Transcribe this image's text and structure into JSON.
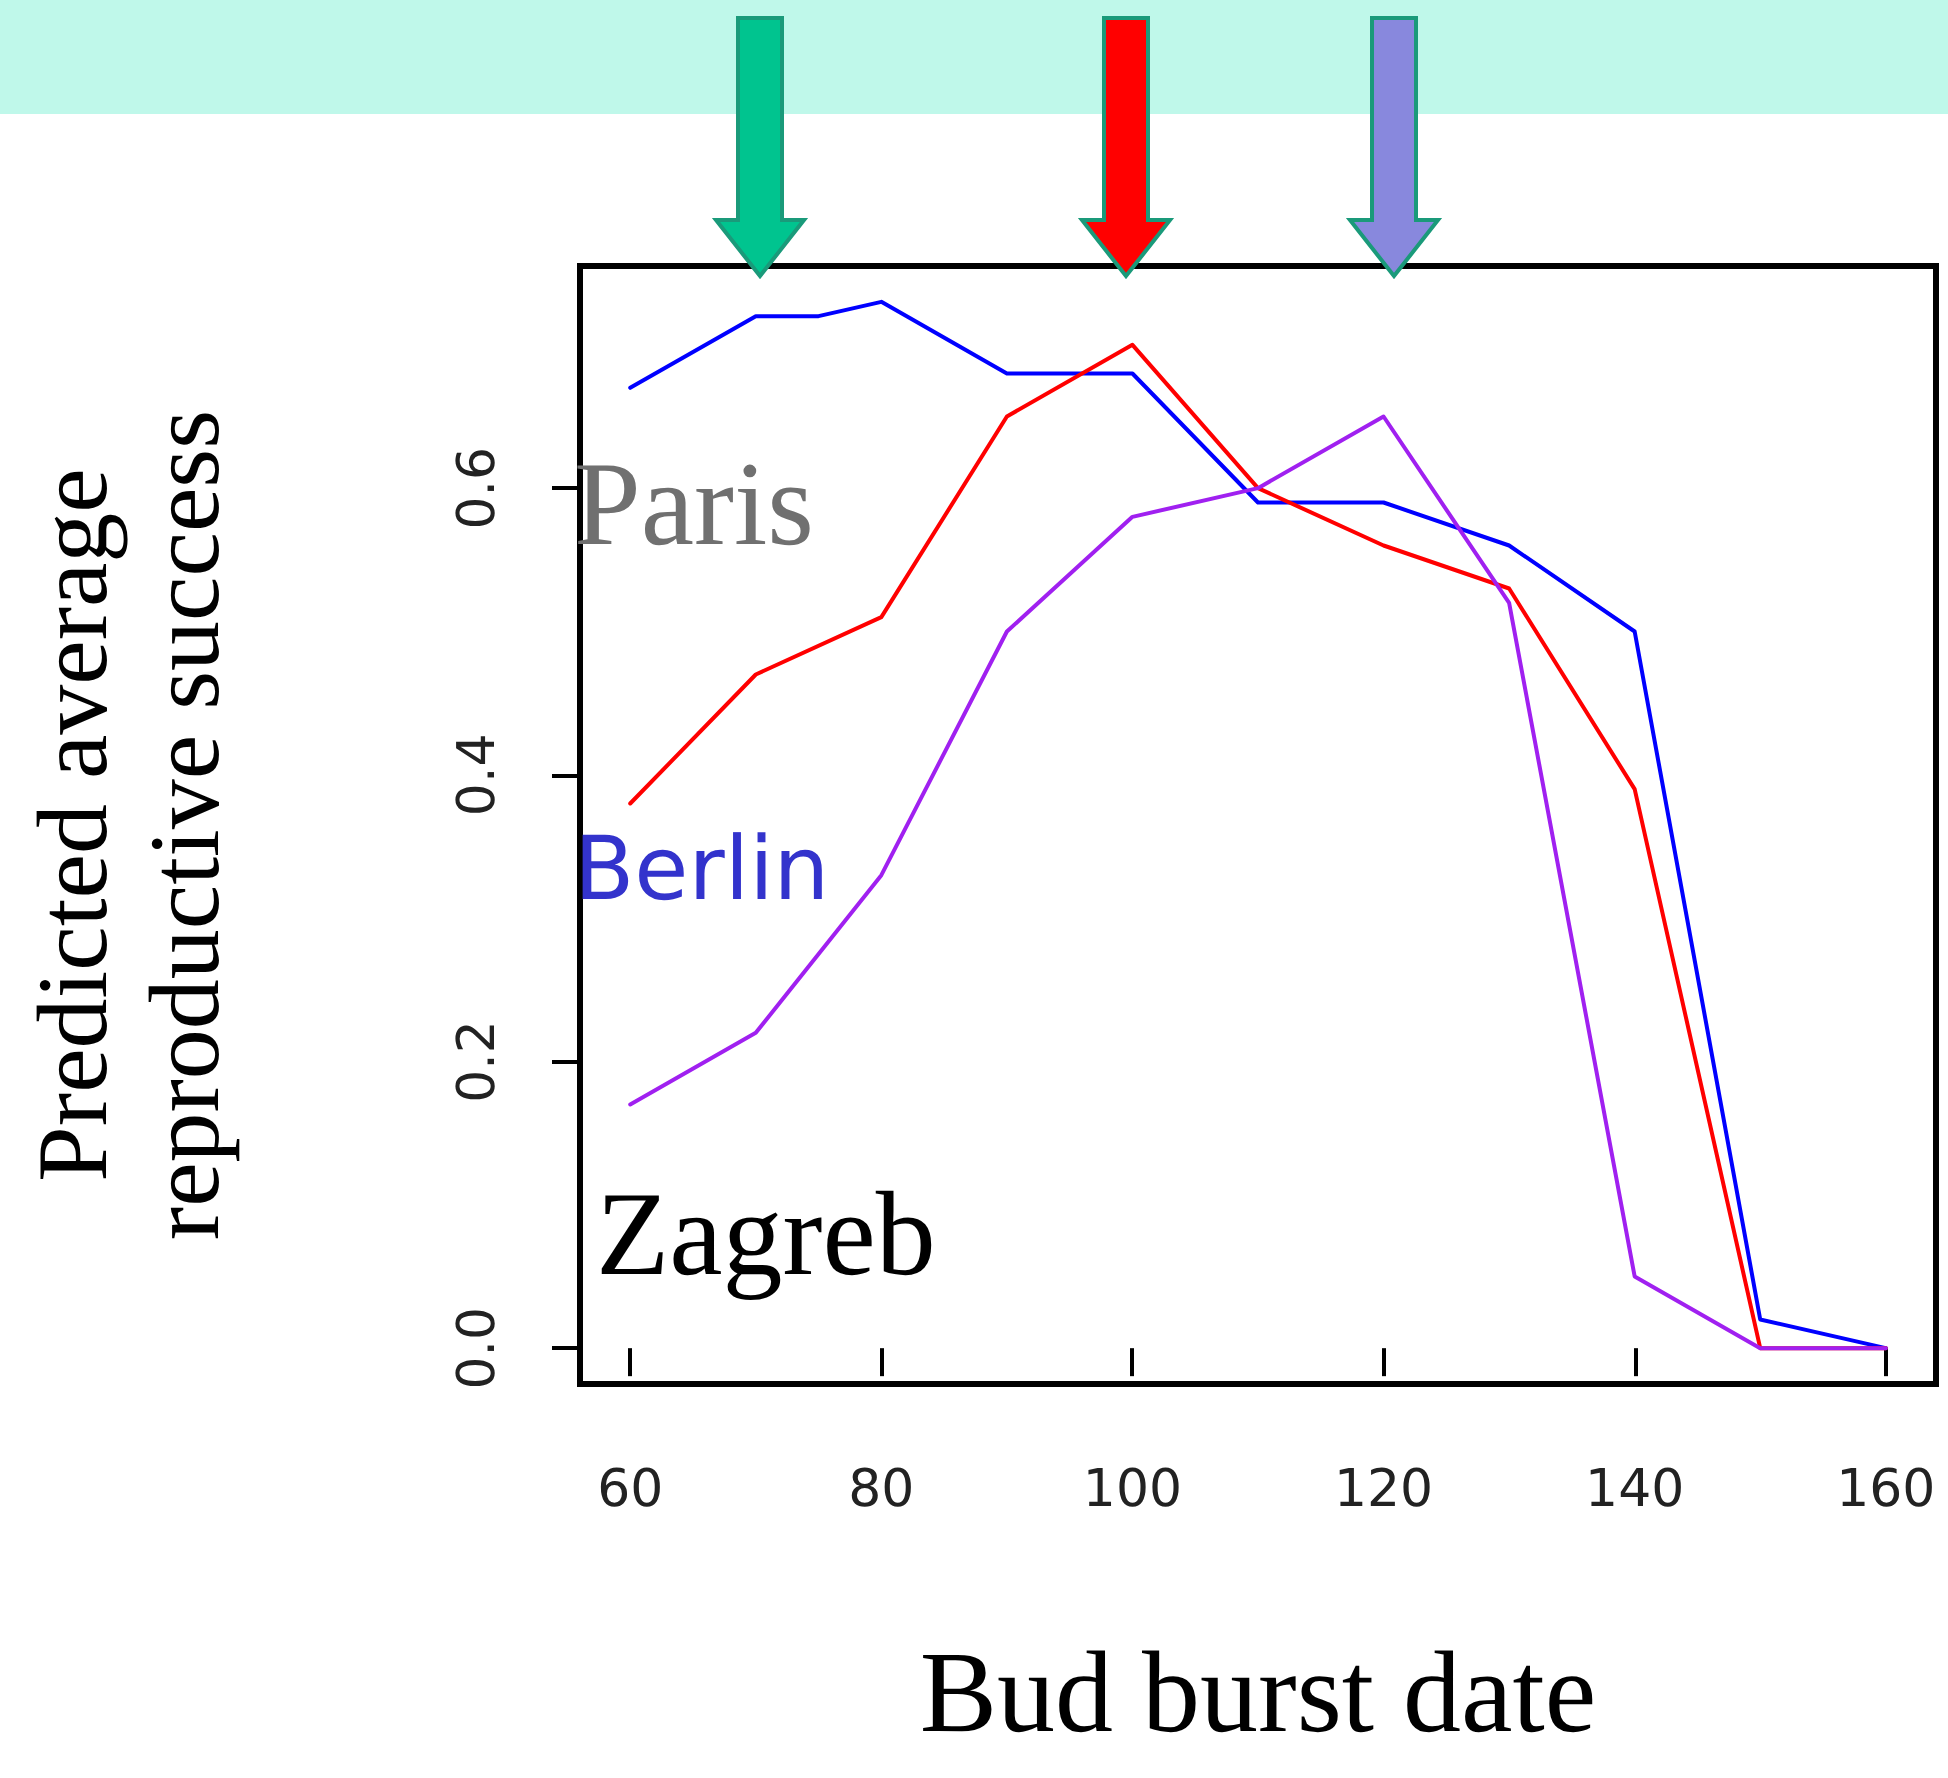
{
  "chart_data": {
    "type": "line",
    "xlabel": "Bud burst date",
    "ylabel": "Predicted average\nreproductive success",
    "x": [
      60,
      70,
      75,
      80,
      90,
      100,
      110,
      120,
      130,
      140,
      150,
      160
    ],
    "series": [
      {
        "color": "#0000ff",
        "values": [
          0.67,
          0.72,
          0.72,
          0.73,
          0.68,
          0.68,
          0.59,
          0.59,
          0.56,
          0.5,
          0.02,
          0.0
        ]
      },
      {
        "color": "#ff0000",
        "x": [
          60,
          70,
          80,
          90,
          100,
          110,
          120,
          130,
          140,
          150,
          160
        ],
        "values": [
          0.38,
          0.47,
          0.51,
          0.65,
          0.7,
          0.6,
          0.56,
          0.53,
          0.39,
          0.0,
          0.0
        ]
      },
      {
        "color": "#a020f0",
        "x": [
          60,
          70,
          80,
          90,
          100,
          110,
          120,
          130,
          140,
          150,
          160
        ],
        "values": [
          0.17,
          0.22,
          0.33,
          0.5,
          0.58,
          0.6,
          0.65,
          0.52,
          0.05,
          0.0,
          0.0
        ]
      }
    ],
    "xlim": [
      56,
      164
    ],
    "ylim": [
      -0.025,
      0.755
    ],
    "xticks": [
      60,
      80,
      100,
      120,
      140,
      160
    ],
    "yticks": [
      {
        "value": 0,
        "label": "0.0"
      },
      0.2,
      0.4,
      0.6
    ],
    "annotations": [
      "Paris",
      "Berlin",
      "Zagreb"
    ],
    "grid": false,
    "marker": "none",
    "line_style": "solid"
  }
}
